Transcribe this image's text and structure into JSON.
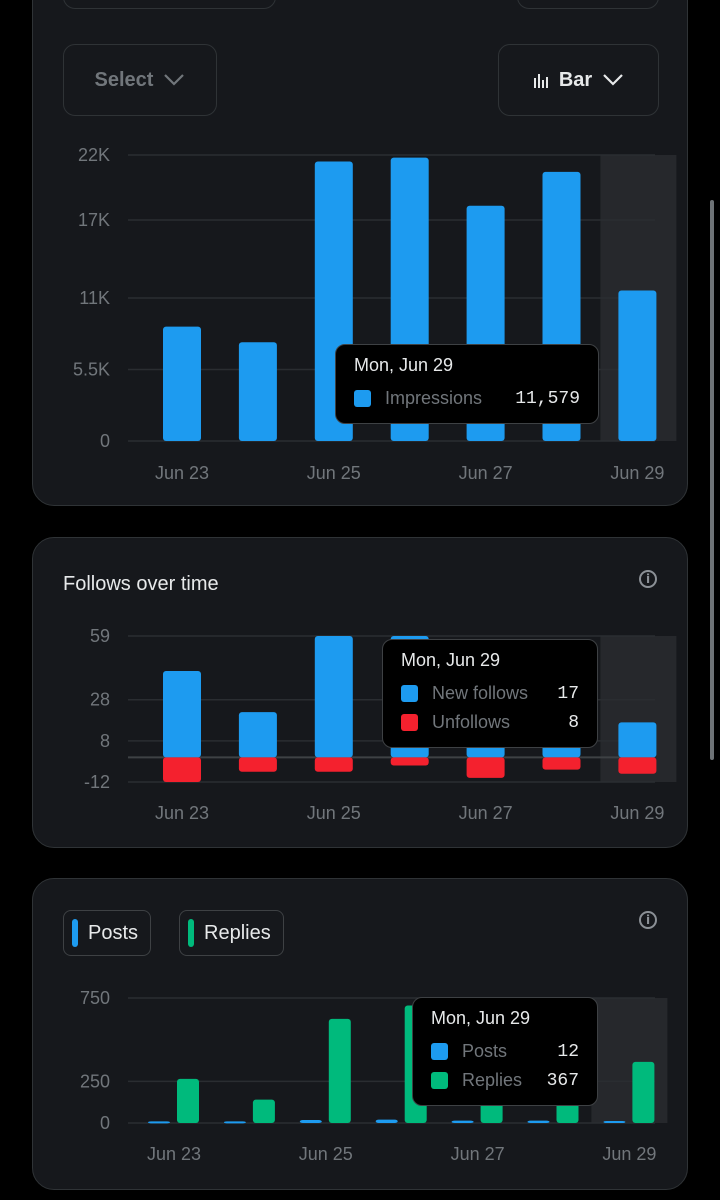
{
  "impressions_card": {
    "select_label": "Select",
    "chart_type_label": "Bar",
    "tooltip": {
      "date": "Mon, Jun 29",
      "items": [
        {
          "name": "Impressions",
          "value": "11,579",
          "color": "#1d9bf0"
        }
      ]
    }
  },
  "follows_card": {
    "title": "Follows over time",
    "tooltip": {
      "date": "Mon, Jun 29",
      "items": [
        {
          "name": "New follows",
          "value": "17",
          "color": "#1d9bf0"
        },
        {
          "name": "Unfollows",
          "value": "8",
          "color": "#f4212e"
        }
      ]
    }
  },
  "posts_card": {
    "legend": [
      {
        "label": "Posts",
        "color": "#1d9bf0"
      },
      {
        "label": "Replies",
        "color": "#00ba7c"
      }
    ],
    "tooltip": {
      "date": "Mon, Jun 29",
      "items": [
        {
          "name": "Posts",
          "value": "12",
          "color": "#1d9bf0"
        },
        {
          "name": "Replies",
          "value": "367",
          "color": "#00ba7c"
        }
      ]
    }
  },
  "chart_data": [
    {
      "type": "bar",
      "title": "",
      "categories": [
        "Jun 23",
        "Jun 24",
        "Jun 25",
        "Jun 26",
        "Jun 27",
        "Jun 28",
        "Jun 29"
      ],
      "x_tick_labels": [
        "Jun 23",
        "Jun 25",
        "Jun 27",
        "Jun 29"
      ],
      "series": [
        {
          "name": "Impressions",
          "color": "#1d9bf0",
          "values": [
            8800,
            7600,
            21500,
            21800,
            18100,
            20700,
            11579
          ]
        }
      ],
      "y_ticks": [
        0,
        5500,
        11000,
        17000,
        22000
      ],
      "y_tick_labels": [
        "0",
        "5.5K",
        "11K",
        "17K",
        "22K"
      ],
      "ylim": [
        0,
        22000
      ],
      "highlight_category": "Jun 29",
      "grid": true
    },
    {
      "type": "bar",
      "title": "Follows over time",
      "categories": [
        "Jun 23",
        "Jun 24",
        "Jun 25",
        "Jun 26",
        "Jun 27",
        "Jun 28",
        "Jun 29"
      ],
      "x_tick_labels": [
        "Jun 23",
        "Jun 25",
        "Jun 27",
        "Jun 29"
      ],
      "series": [
        {
          "name": "New follows",
          "color": "#1d9bf0",
          "values": [
            42,
            22,
            59,
            59,
            35,
            35,
            17
          ]
        },
        {
          "name": "Unfollows",
          "color": "#f4212e",
          "values": [
            -12,
            -7,
            -7,
            -4,
            -10,
            -6,
            -8
          ]
        }
      ],
      "y_ticks": [
        -12,
        8,
        28,
        59
      ],
      "y_tick_labels": [
        "-12",
        "8",
        "28",
        "59"
      ],
      "ylim": [
        -12,
        59
      ],
      "highlight_category": "Jun 29",
      "grid": true
    },
    {
      "type": "bar",
      "title": "",
      "categories": [
        "Jun 23",
        "Jun 24",
        "Jun 25",
        "Jun 26",
        "Jun 27",
        "Jun 28",
        "Jun 29"
      ],
      "x_tick_labels": [
        "Jun 23",
        "Jun 25",
        "Jun 27",
        "Jun 29"
      ],
      "series": [
        {
          "name": "Posts",
          "color": "#1d9bf0",
          "values": [
            10,
            10,
            18,
            20,
            14,
            14,
            12
          ]
        },
        {
          "name": "Replies",
          "color": "#00ba7c",
          "values": [
            265,
            140,
            625,
            705,
            410,
            410,
            367
          ]
        }
      ],
      "y_ticks": [
        0,
        250,
        750
      ],
      "y_tick_labels": [
        "0",
        "250",
        "750"
      ],
      "ylim": [
        0,
        750
      ],
      "highlight_category": "Jun 29",
      "grid": true
    }
  ]
}
